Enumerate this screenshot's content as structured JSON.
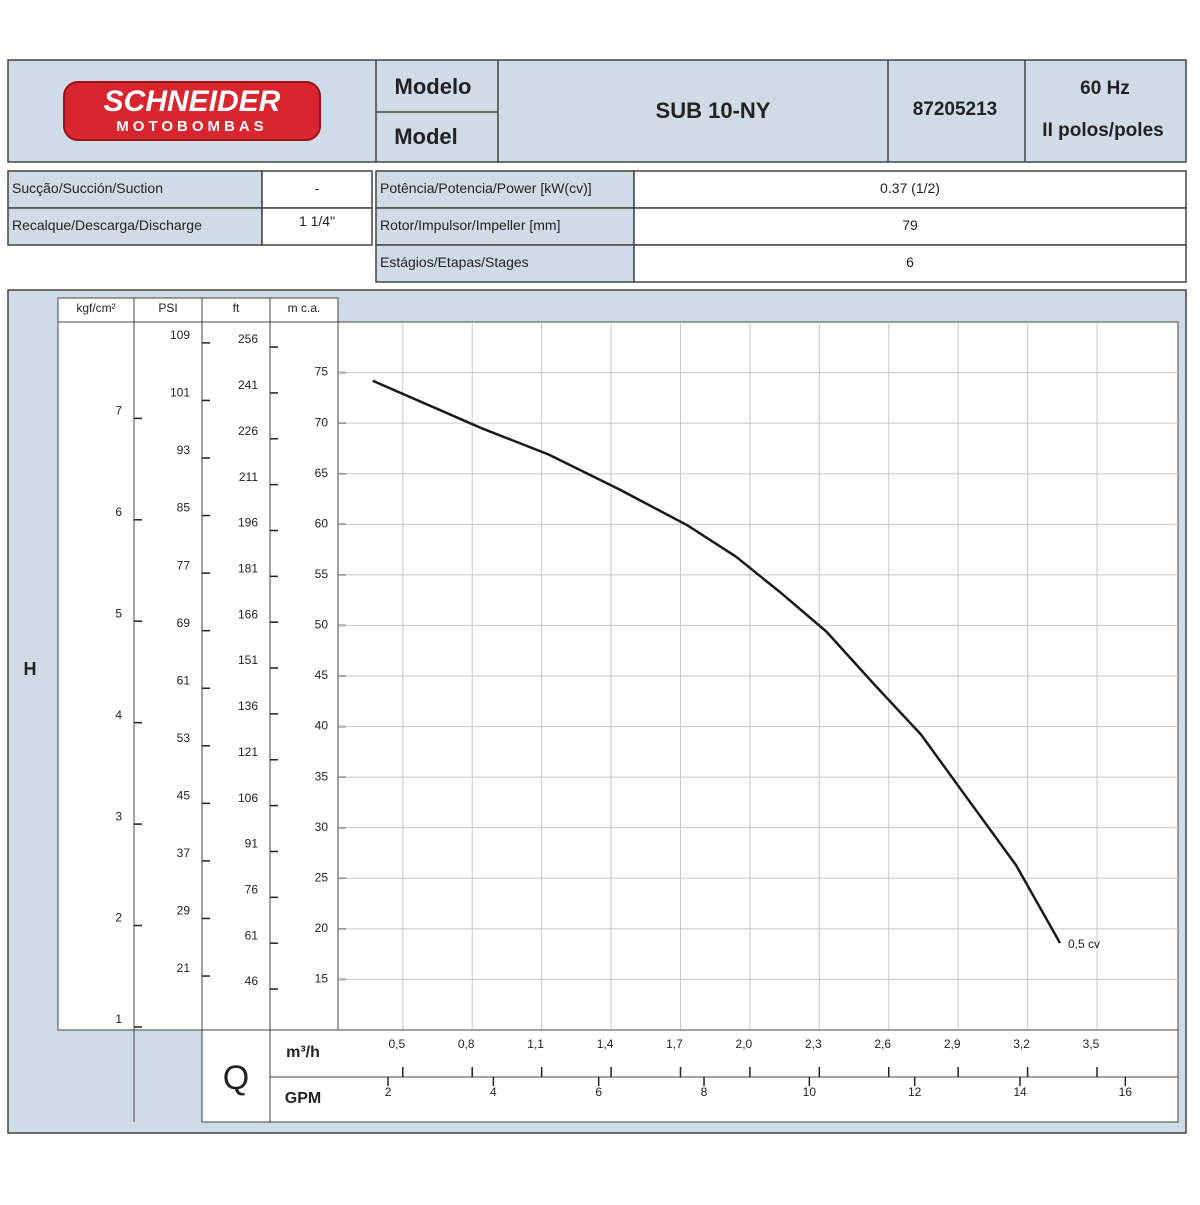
{
  "header": {
    "brand": "SCHNEIDER",
    "brand_sub": "MOTOBOMBAS",
    "model_label_pt": "Modelo",
    "model_label_en": "Model",
    "model": "SUB 10-NY",
    "code": "87205213",
    "frequency": "60 Hz",
    "poles": "II polos/poles"
  },
  "specs": {
    "left": [
      [
        "Sucção/Succión/Suction",
        "-"
      ],
      [
        "Recalque/Descarga/Discharge",
        "1 1/4\""
      ]
    ],
    "right": [
      [
        "Potência/Potencia/Power [kW(cv)]",
        "0.37 (1/2)"
      ],
      [
        "Rotor/Impulsor/Impeller [mm]",
        "79"
      ],
      [
        "Estágios/Etapas/Stages",
        "6"
      ]
    ]
  },
  "chart_data": {
    "type": "line",
    "y_axis_title": "H",
    "x_axis_title": "Q",
    "x_unit": "m³/h",
    "y_unit": "m c.a.",
    "x": [
      0.37,
      0.84,
      1.13,
      1.44,
      1.73,
      1.94,
      2.13,
      2.33,
      2.54,
      2.74,
      2.93,
      3.15,
      3.34
    ],
    "series": [
      {
        "name": "0,5 cv",
        "color": "#1a1a1a",
        "values": [
          74.2,
          69.5,
          66.9,
          63.4,
          59.9,
          56.8,
          53.3,
          49.4,
          44.1,
          39.2,
          33.2,
          26.3,
          18.6
        ]
      }
    ],
    "xlim": [
      0.22,
      3.85
    ],
    "xticks": [
      {
        "value": 0.5,
        "label": "0,5"
      },
      {
        "value": 0.8,
        "label": "0,8"
      },
      {
        "value": 1.1,
        "label": "1,1"
      },
      {
        "value": 1.4,
        "label": "1,4"
      },
      {
        "value": 1.7,
        "label": "1,7"
      },
      {
        "value": 2.0,
        "label": "2,0"
      },
      {
        "value": 2.3,
        "label": "2,3"
      },
      {
        "value": 2.6,
        "label": "2,6"
      },
      {
        "value": 2.9,
        "label": "2,9"
      },
      {
        "value": 3.2,
        "label": "3,2"
      },
      {
        "value": 3.5,
        "label": "3,5"
      }
    ],
    "ylim": [
      10,
      80
    ],
    "yticks": [
      15,
      20,
      25,
      30,
      35,
      40,
      45,
      50,
      55,
      60,
      65,
      70,
      75
    ],
    "grid": true,
    "x2": {
      "unit": "GPM",
      "xlim": [
        1.05,
        17
      ],
      "xticks": [
        2,
        4,
        6,
        8,
        10,
        12,
        14,
        16
      ]
    },
    "extra_y_axes": [
      {
        "unit": "kgf/cm²",
        "ylim": [
          0.97,
          7.95
        ],
        "yticks": [
          1,
          2,
          3,
          4,
          5,
          6,
          7
        ]
      },
      {
        "unit": "PSI",
        "ylim": [
          13.5,
          111.9
        ],
        "yticks": [
          21,
          29,
          37,
          45,
          53,
          61,
          69,
          77,
          85,
          93,
          101,
          109
        ]
      },
      {
        "unit": "ft",
        "ylim": [
          32.6,
          264.2
        ],
        "yticks": [
          46,
          61,
          76,
          91,
          106,
          121,
          136,
          151,
          166,
          181,
          196,
          211,
          226,
          241,
          256
        ]
      }
    ]
  }
}
